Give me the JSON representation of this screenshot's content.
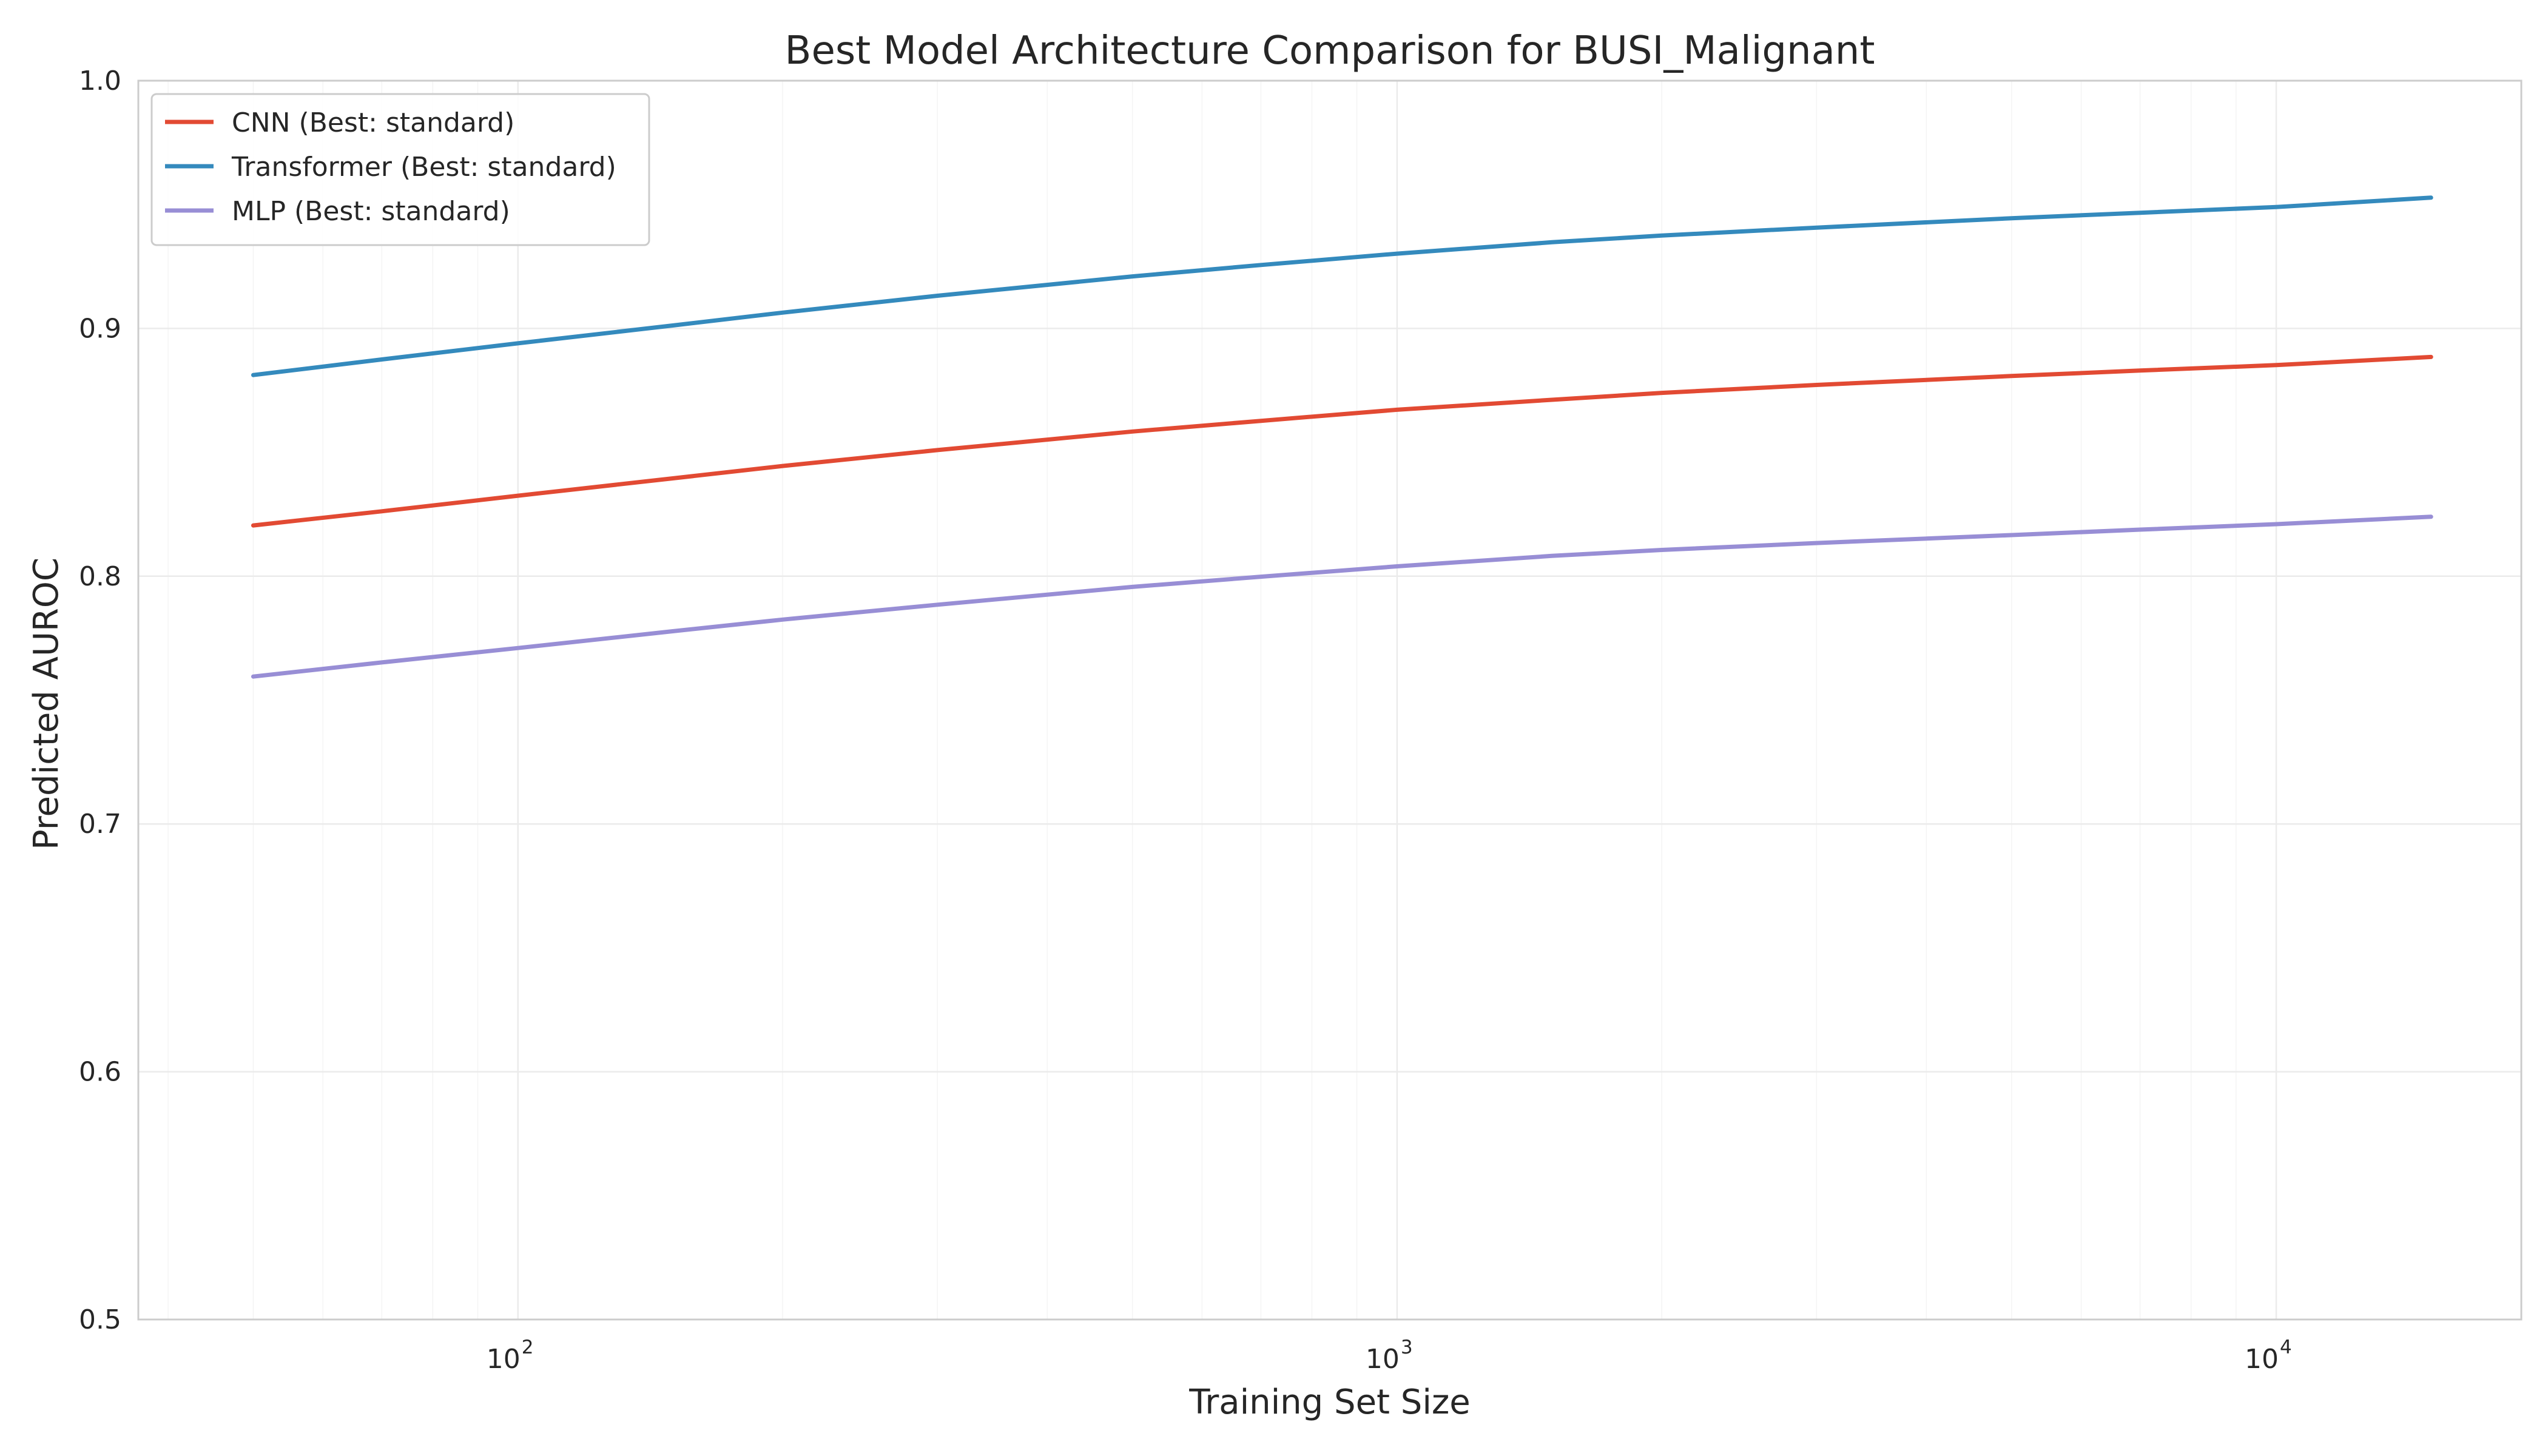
{
  "chart_data": {
    "type": "line",
    "title": "Best Model Architecture Comparison for BUSI_Malignant",
    "xlabel": "Training Set Size",
    "ylabel": "Predicted AUROC",
    "xscale": "log",
    "xlim": [
      37,
      19000
    ],
    "ylim": [
      0.5,
      1.0
    ],
    "grid": true,
    "legend_position": "top-left",
    "x_ticks": [
      {
        "value": 100,
        "base": "10",
        "exp": "2"
      },
      {
        "value": 1000,
        "base": "10",
        "exp": "3"
      },
      {
        "value": 10000,
        "base": "10",
        "exp": "4"
      }
    ],
    "y_ticks": [
      {
        "value": 0.5,
        "label": "0.5"
      },
      {
        "value": 0.6,
        "label": "0.6"
      },
      {
        "value": 0.7,
        "label": "0.7"
      },
      {
        "value": 0.8,
        "label": "0.8"
      },
      {
        "value": 0.9,
        "label": "0.9"
      },
      {
        "value": 1.0,
        "label": "1.0"
      }
    ],
    "x": [
      50,
      70,
      100,
      150,
      200,
      300,
      500,
      700,
      1000,
      1500,
      2000,
      3000,
      5000,
      7000,
      10000,
      15000
    ],
    "series": [
      {
        "name": "CNN (Best: standard)",
        "color": "#e24a33",
        "values": [
          0.8205,
          0.8262,
          0.8325,
          0.8395,
          0.8445,
          0.8509,
          0.8584,
          0.8627,
          0.8672,
          0.8712,
          0.874,
          0.8772,
          0.8808,
          0.883,
          0.8852,
          0.8885
        ]
      },
      {
        "name": "Transformer (Best: standard)",
        "color": "#348abd",
        "values": [
          0.8812,
          0.8875,
          0.894,
          0.9012,
          0.9064,
          0.9132,
          0.921,
          0.9256,
          0.9302,
          0.9348,
          0.9375,
          0.9407,
          0.9445,
          0.9467,
          0.949,
          0.9528
        ]
      },
      {
        "name": "MLP (Best: standard)",
        "color": "#988ed5",
        "values": [
          0.7595,
          0.7652,
          0.771,
          0.7778,
          0.7825,
          0.7885,
          0.7957,
          0.7998,
          0.804,
          0.8082,
          0.8106,
          0.8134,
          0.8166,
          0.8188,
          0.821,
          0.824
        ]
      }
    ]
  }
}
